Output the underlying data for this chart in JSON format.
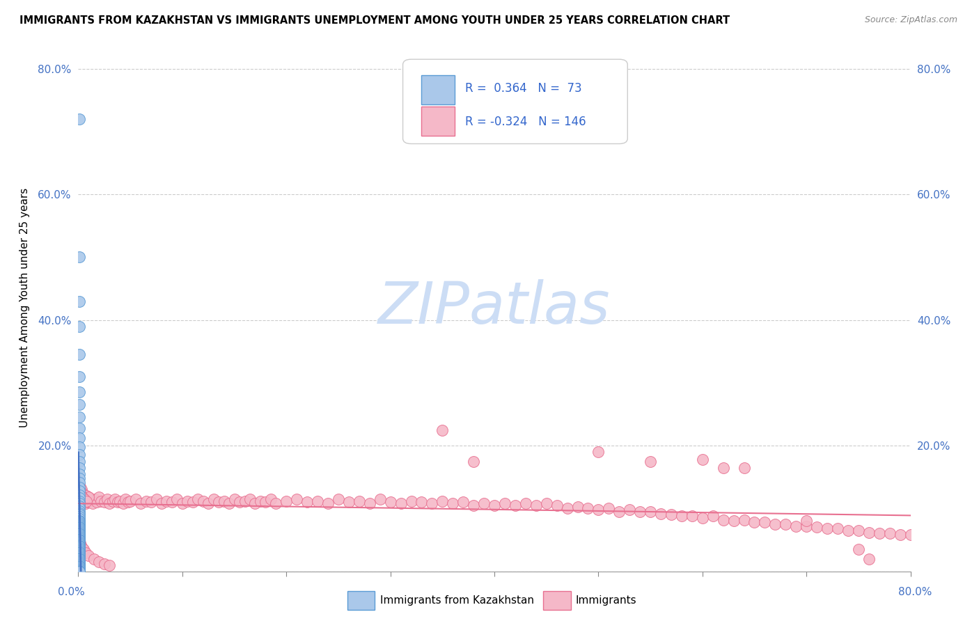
{
  "title": "IMMIGRANTS FROM KAZAKHSTAN VS IMMIGRANTS UNEMPLOYMENT AMONG YOUTH UNDER 25 YEARS CORRELATION CHART",
  "source": "Source: ZipAtlas.com",
  "ylabel": "Unemployment Among Youth under 25 years",
  "ytick_vals": [
    0.0,
    0.2,
    0.4,
    0.6,
    0.8
  ],
  "ytick_labels": [
    "",
    "20.0%",
    "40.0%",
    "60.0%",
    "80.0%"
  ],
  "xlim": [
    0.0,
    0.8
  ],
  "ylim": [
    0.0,
    0.84
  ],
  "blue_fill": "#aac8ea",
  "blue_edge": "#5a9bd5",
  "pink_fill": "#f5b8c8",
  "pink_edge": "#e87090",
  "blue_line_color": "#4472c4",
  "pink_line_color": "#e07080",
  "watermark_text": "ZIPatlas",
  "watermark_color": "#ccddf5",
  "legend_r1": "R =  0.364",
  "legend_n1": "N =  73",
  "legend_r2": "R = -0.324",
  "legend_n2": "N = 146",
  "blue_scatter_x": [
    0.0008,
    0.001,
    0.0012,
    0.0009,
    0.0011,
    0.0008,
    0.001,
    0.0012,
    0.0009,
    0.001,
    0.0008,
    0.0011,
    0.001,
    0.0009,
    0.0012,
    0.001,
    0.0008,
    0.0011,
    0.001,
    0.0009,
    0.0012,
    0.001,
    0.0008,
    0.0011,
    0.001,
    0.0009,
    0.0012,
    0.001,
    0.0008,
    0.0011,
    0.001,
    0.0009,
    0.0012,
    0.001,
    0.0008,
    0.0011,
    0.001,
    0.0009,
    0.0012,
    0.001,
    0.0008,
    0.0011,
    0.001,
    0.0009,
    0.0012,
    0.001,
    0.0008,
    0.0011,
    0.001,
    0.0009,
    0.0012,
    0.001,
    0.0008,
    0.0011,
    0.001,
    0.0009,
    0.0012,
    0.001,
    0.0008,
    0.0011,
    0.001,
    0.0009,
    0.0012,
    0.001,
    0.0008,
    0.0011,
    0.001,
    0.0009,
    0.0012,
    0.001,
    0.0008,
    0.0011,
    0.001
  ],
  "blue_scatter_y": [
    0.72,
    0.5,
    0.43,
    0.39,
    0.345,
    0.31,
    0.285,
    0.265,
    0.245,
    0.228,
    0.212,
    0.198,
    0.186,
    0.175,
    0.165,
    0.155,
    0.148,
    0.141,
    0.134,
    0.128,
    0.122,
    0.117,
    0.112,
    0.108,
    0.104,
    0.1,
    0.096,
    0.093,
    0.09,
    0.087,
    0.084,
    0.081,
    0.079,
    0.077,
    0.075,
    0.073,
    0.071,
    0.069,
    0.067,
    0.065,
    0.063,
    0.061,
    0.059,
    0.057,
    0.055,
    0.053,
    0.051,
    0.049,
    0.047,
    0.045,
    0.043,
    0.041,
    0.039,
    0.037,
    0.035,
    0.033,
    0.031,
    0.029,
    0.027,
    0.025,
    0.023,
    0.021,
    0.019,
    0.017,
    0.015,
    0.013,
    0.011,
    0.009,
    0.007,
    0.005,
    0.003,
    0.001,
    0.0
  ],
  "pink_scatter_x": [
    0.001,
    0.002,
    0.003,
    0.004,
    0.005,
    0.006,
    0.007,
    0.008,
    0.009,
    0.01,
    0.012,
    0.014,
    0.016,
    0.018,
    0.02,
    0.022,
    0.025,
    0.028,
    0.03,
    0.033,
    0.035,
    0.038,
    0.04,
    0.043,
    0.045,
    0.048,
    0.05,
    0.055,
    0.06,
    0.065,
    0.07,
    0.075,
    0.08,
    0.085,
    0.09,
    0.095,
    0.1,
    0.105,
    0.11,
    0.115,
    0.12,
    0.125,
    0.13,
    0.135,
    0.14,
    0.145,
    0.15,
    0.155,
    0.16,
    0.165,
    0.17,
    0.175,
    0.18,
    0.185,
    0.19,
    0.2,
    0.21,
    0.22,
    0.23,
    0.24,
    0.25,
    0.26,
    0.27,
    0.28,
    0.29,
    0.3,
    0.31,
    0.32,
    0.33,
    0.34,
    0.35,
    0.36,
    0.37,
    0.38,
    0.39,
    0.4,
    0.41,
    0.42,
    0.43,
    0.44,
    0.45,
    0.46,
    0.47,
    0.48,
    0.49,
    0.5,
    0.51,
    0.52,
    0.53,
    0.54,
    0.55,
    0.56,
    0.57,
    0.58,
    0.59,
    0.6,
    0.61,
    0.62,
    0.63,
    0.64,
    0.65,
    0.66,
    0.67,
    0.68,
    0.69,
    0.7,
    0.71,
    0.72,
    0.73,
    0.74,
    0.75,
    0.76,
    0.77,
    0.78,
    0.79,
    0.8,
    0.001,
    0.002,
    0.003,
    0.005,
    0.007,
    0.01,
    0.015,
    0.02,
    0.025,
    0.03,
    0.35,
    0.38,
    0.5,
    0.55,
    0.6,
    0.62,
    0.64,
    0.7,
    0.75,
    0.76,
    0.002,
    0.003,
    0.004,
    0.006,
    0.008,
    0.01,
    0.003,
    0.004,
    0.006,
    0.008
  ],
  "pink_scatter_y": [
    0.125,
    0.13,
    0.12,
    0.115,
    0.118,
    0.112,
    0.108,
    0.115,
    0.11,
    0.118,
    0.112,
    0.108,
    0.115,
    0.11,
    0.118,
    0.112,
    0.11,
    0.115,
    0.108,
    0.112,
    0.115,
    0.11,
    0.112,
    0.108,
    0.115,
    0.11,
    0.112,
    0.115,
    0.108,
    0.112,
    0.11,
    0.115,
    0.108,
    0.112,
    0.11,
    0.115,
    0.108,
    0.112,
    0.11,
    0.115,
    0.112,
    0.108,
    0.115,
    0.11,
    0.112,
    0.108,
    0.115,
    0.11,
    0.112,
    0.115,
    0.108,
    0.112,
    0.11,
    0.115,
    0.108,
    0.112,
    0.115,
    0.11,
    0.112,
    0.108,
    0.115,
    0.11,
    0.112,
    0.108,
    0.115,
    0.11,
    0.108,
    0.112,
    0.11,
    0.108,
    0.112,
    0.108,
    0.11,
    0.105,
    0.108,
    0.105,
    0.108,
    0.105,
    0.108,
    0.105,
    0.108,
    0.105,
    0.1,
    0.103,
    0.1,
    0.098,
    0.1,
    0.095,
    0.098,
    0.095,
    0.095,
    0.092,
    0.09,
    0.088,
    0.088,
    0.085,
    0.088,
    0.082,
    0.08,
    0.082,
    0.078,
    0.078,
    0.075,
    0.075,
    0.072,
    0.072,
    0.07,
    0.068,
    0.068,
    0.065,
    0.065,
    0.062,
    0.06,
    0.06,
    0.058,
    0.058,
    0.05,
    0.045,
    0.04,
    0.035,
    0.03,
    0.025,
    0.02,
    0.015,
    0.012,
    0.01,
    0.225,
    0.175,
    0.19,
    0.175,
    0.178,
    0.165,
    0.165,
    0.08,
    0.035,
    0.02,
    0.135,
    0.13,
    0.125,
    0.122,
    0.12,
    0.118,
    0.12,
    0.118,
    0.115,
    0.112
  ]
}
